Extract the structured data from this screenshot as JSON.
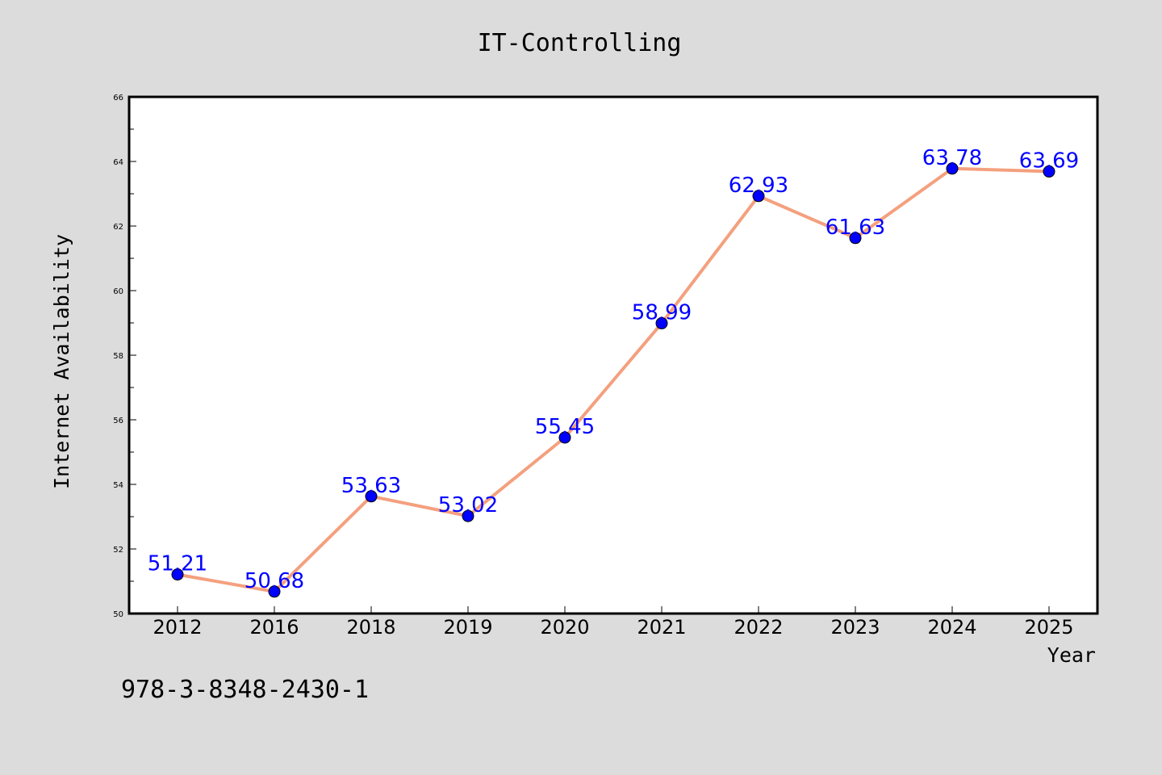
{
  "chart_data": {
    "type": "line",
    "title": "IT-Controlling",
    "xlabel": "Year",
    "ylabel": "Internet Availability",
    "categories": [
      "2012",
      "2016",
      "2018",
      "2019",
      "2020",
      "2021",
      "2022",
      "2023",
      "2024",
      "2025"
    ],
    "values": [
      51.21,
      50.68,
      53.63,
      53.02,
      55.45,
      58.99,
      62.93,
      61.63,
      63.78,
      63.69
    ],
    "data_labels": [
      "51.21",
      "50.68",
      "53.63",
      "53.02",
      "55.45",
      "58.99",
      "62.93",
      "61.63",
      "63.78",
      "63.69"
    ],
    "ylim": [
      50,
      66
    ],
    "y_ticks": [
      "50",
      "52",
      "54",
      "56",
      "58",
      "60",
      "62",
      "64",
      "66"
    ],
    "grid": false,
    "legend": "none",
    "line_color": "#f4a07e",
    "marker_color": "#0000ff",
    "label_color": "#0000ff"
  },
  "footer": {
    "code": "978-3-8348-2430-1"
  }
}
